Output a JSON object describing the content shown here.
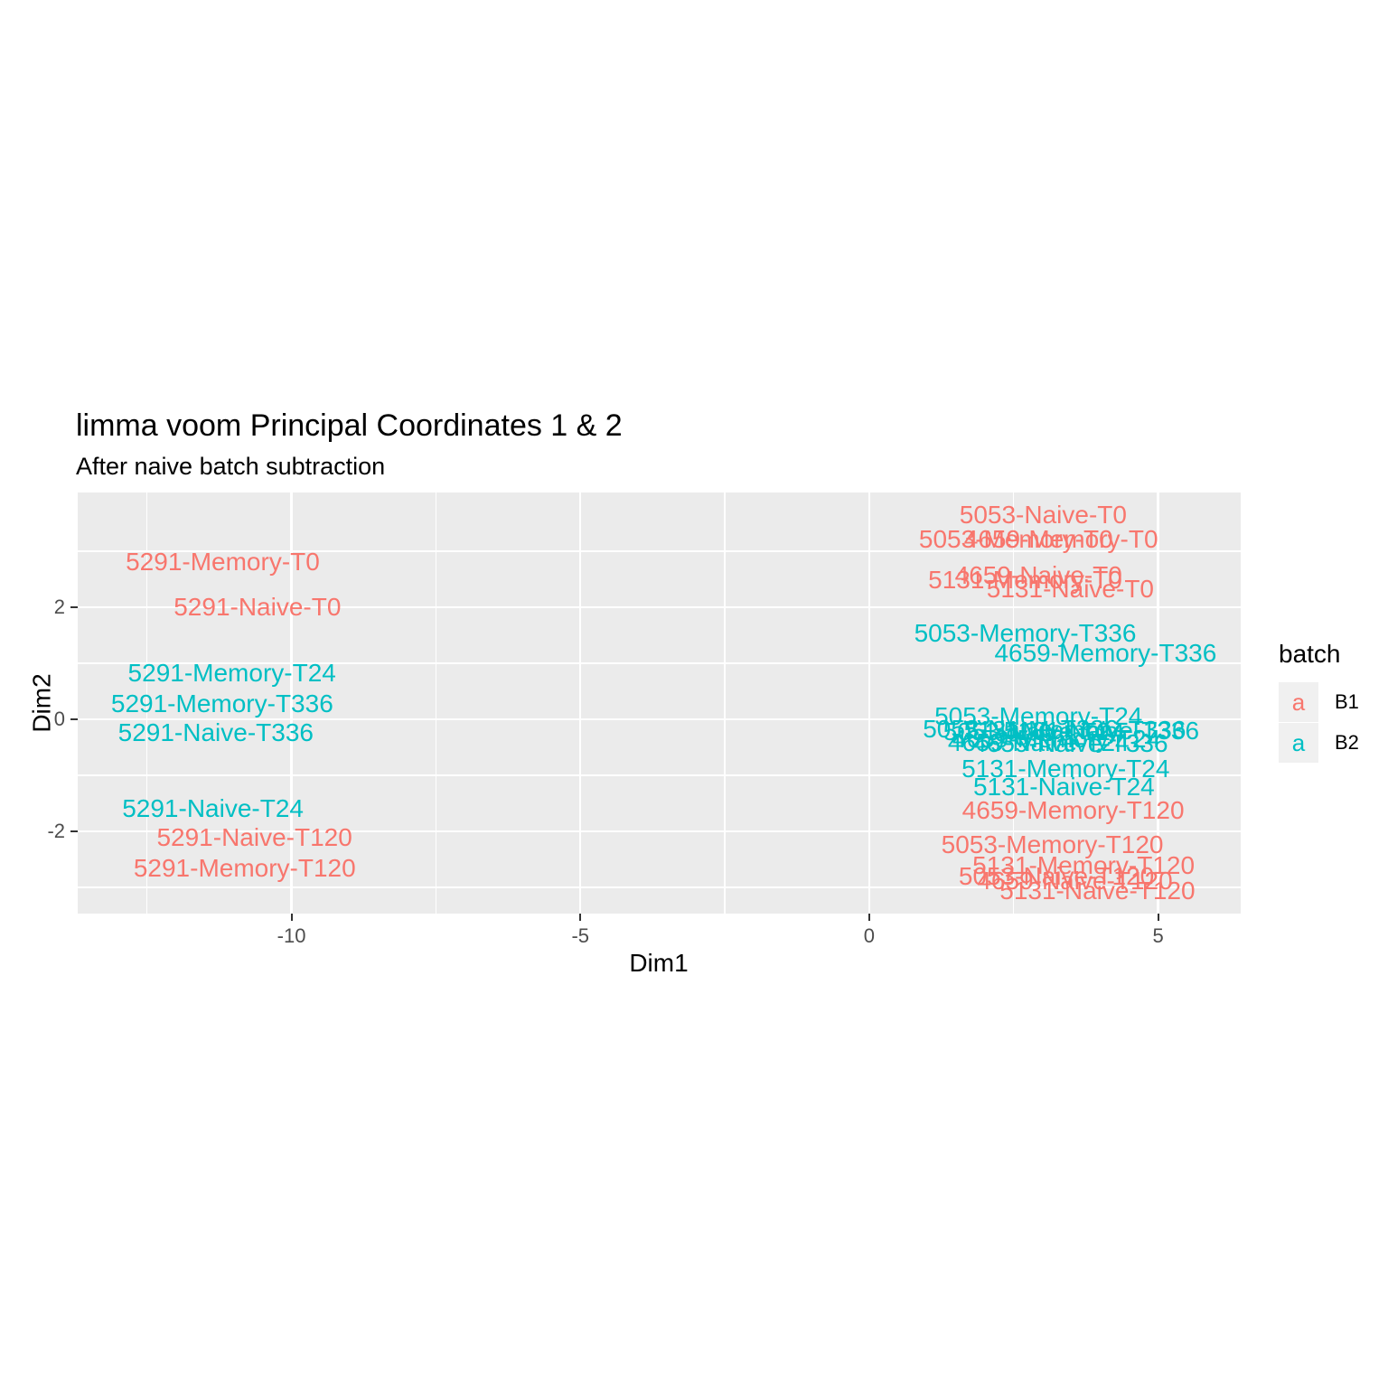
{
  "title": "limma voom Principal Coordinates 1 & 2",
  "subtitle": "After naive batch subtraction",
  "colors": {
    "batch_B1": "#F8766D",
    "batch_B2": "#00BFC4",
    "panel_background": "#EBEBEB",
    "gridline": "#FFFFFF",
    "tick_text": "#4D4D4D",
    "legend_key_background": "#F0F0F0"
  },
  "chart_data": {
    "type": "scatter",
    "mode": "text-labels",
    "title": "limma voom Principal Coordinates 1 & 2",
    "subtitle": "After naive batch subtraction",
    "xlabel": "Dim1",
    "ylabel": "Dim2",
    "xlim": [
      -13.7,
      6.43
    ],
    "ylim": [
      -3.47,
      4.05
    ],
    "x_major_ticks": [
      -10,
      -5,
      0,
      5
    ],
    "x_minor_ticks": [
      -12.5,
      -7.5,
      -2.5,
      2.5
    ],
    "y_major_ticks": [
      -2,
      0,
      2
    ],
    "y_minor_ticks": [
      -3,
      -1,
      1,
      3
    ],
    "grid": "on",
    "legend": {
      "title": "batch",
      "position": "right",
      "entries": [
        {
          "key": "a",
          "label": "B1",
          "color": "#F8766D"
        },
        {
          "key": "a",
          "label": "B2",
          "color": "#00BFC4"
        }
      ]
    },
    "points": [
      {
        "label": "5291-Memory-T0",
        "x": -11.19,
        "y": 2.81,
        "batch": "B1"
      },
      {
        "label": "5291-Naive-T0",
        "x": -10.59,
        "y": 2.0,
        "batch": "B1"
      },
      {
        "label": "5291-Memory-T24",
        "x": -11.03,
        "y": 0.82,
        "batch": "B2"
      },
      {
        "label": "5291-Memory-T336",
        "x": -11.2,
        "y": 0.27,
        "batch": "B2"
      },
      {
        "label": "5291-Naive-T336",
        "x": -11.31,
        "y": -0.24,
        "batch": "B2"
      },
      {
        "label": "5291-Naive-T24",
        "x": -11.36,
        "y": -1.6,
        "batch": "B2"
      },
      {
        "label": "5291-Naive-T120",
        "x": -10.64,
        "y": -2.11,
        "batch": "B1"
      },
      {
        "label": "5291-Memory-T120",
        "x": -10.81,
        "y": -2.66,
        "batch": "B1"
      },
      {
        "label": "5053-Naive-T0",
        "x": 3.01,
        "y": 3.65,
        "batch": "B1"
      },
      {
        "label": "5053-Memory-T0",
        "x": 2.54,
        "y": 3.21,
        "batch": "B1"
      },
      {
        "label": "4659-Memory-T0",
        "x": 3.32,
        "y": 3.21,
        "batch": "B1"
      },
      {
        "label": "4659-Naive-T0",
        "x": 2.93,
        "y": 2.57,
        "batch": "B1"
      },
      {
        "label": "5131-Memory-T0",
        "x": 2.7,
        "y": 2.49,
        "batch": "B1"
      },
      {
        "label": "5131-Naive-T0",
        "x": 3.48,
        "y": 2.33,
        "batch": "B1"
      },
      {
        "label": "5053-Memory-T336",
        "x": 2.7,
        "y": 1.53,
        "batch": "B2"
      },
      {
        "label": "4659-Memory-T336",
        "x": 4.09,
        "y": 1.18,
        "batch": "B2"
      },
      {
        "label": "5053-Memory-T24",
        "x": 2.93,
        "y": 0.05,
        "batch": "B2"
      },
      {
        "label": "5053-Naive-T336",
        "x": 2.62,
        "y": -0.18,
        "batch": "B2"
      },
      {
        "label": "5053-Naive-T24",
        "x": 2.85,
        "y": -0.23,
        "batch": "B2"
      },
      {
        "label": "5131-Memory-T336",
        "x": 3.56,
        "y": -0.19,
        "batch": "B2"
      },
      {
        "label": "5131-Naive-T336",
        "x": 4.02,
        "y": -0.21,
        "batch": "B2"
      },
      {
        "label": "4659-Memory-T24",
        "x": 3.24,
        "y": -0.36,
        "batch": "B2"
      },
      {
        "label": "4659-Naive-T24",
        "x": 2.93,
        "y": -0.42,
        "batch": "B2"
      },
      {
        "label": "4659-Naive-T336",
        "x": 3.48,
        "y": -0.44,
        "batch": "B2"
      },
      {
        "label": "5131-Memory-T24",
        "x": 3.4,
        "y": -0.89,
        "batch": "B2"
      },
      {
        "label": "5131-Naive-T24",
        "x": 3.37,
        "y": -1.21,
        "batch": "B2"
      },
      {
        "label": "4659-Memory-T120",
        "x": 3.53,
        "y": -1.63,
        "batch": "B1"
      },
      {
        "label": "5053-Memory-T120",
        "x": 3.17,
        "y": -2.24,
        "batch": "B1"
      },
      {
        "label": "5131-Memory-T120",
        "x": 3.71,
        "y": -2.61,
        "batch": "B1"
      },
      {
        "label": "5053-Naive-T120",
        "x": 3.24,
        "y": -2.81,
        "batch": "B1"
      },
      {
        "label": "4659-Naive-T120",
        "x": 3.56,
        "y": -2.89,
        "batch": "B1"
      },
      {
        "label": "5131-Naive-T120",
        "x": 3.95,
        "y": -3.06,
        "batch": "B1"
      }
    ]
  }
}
